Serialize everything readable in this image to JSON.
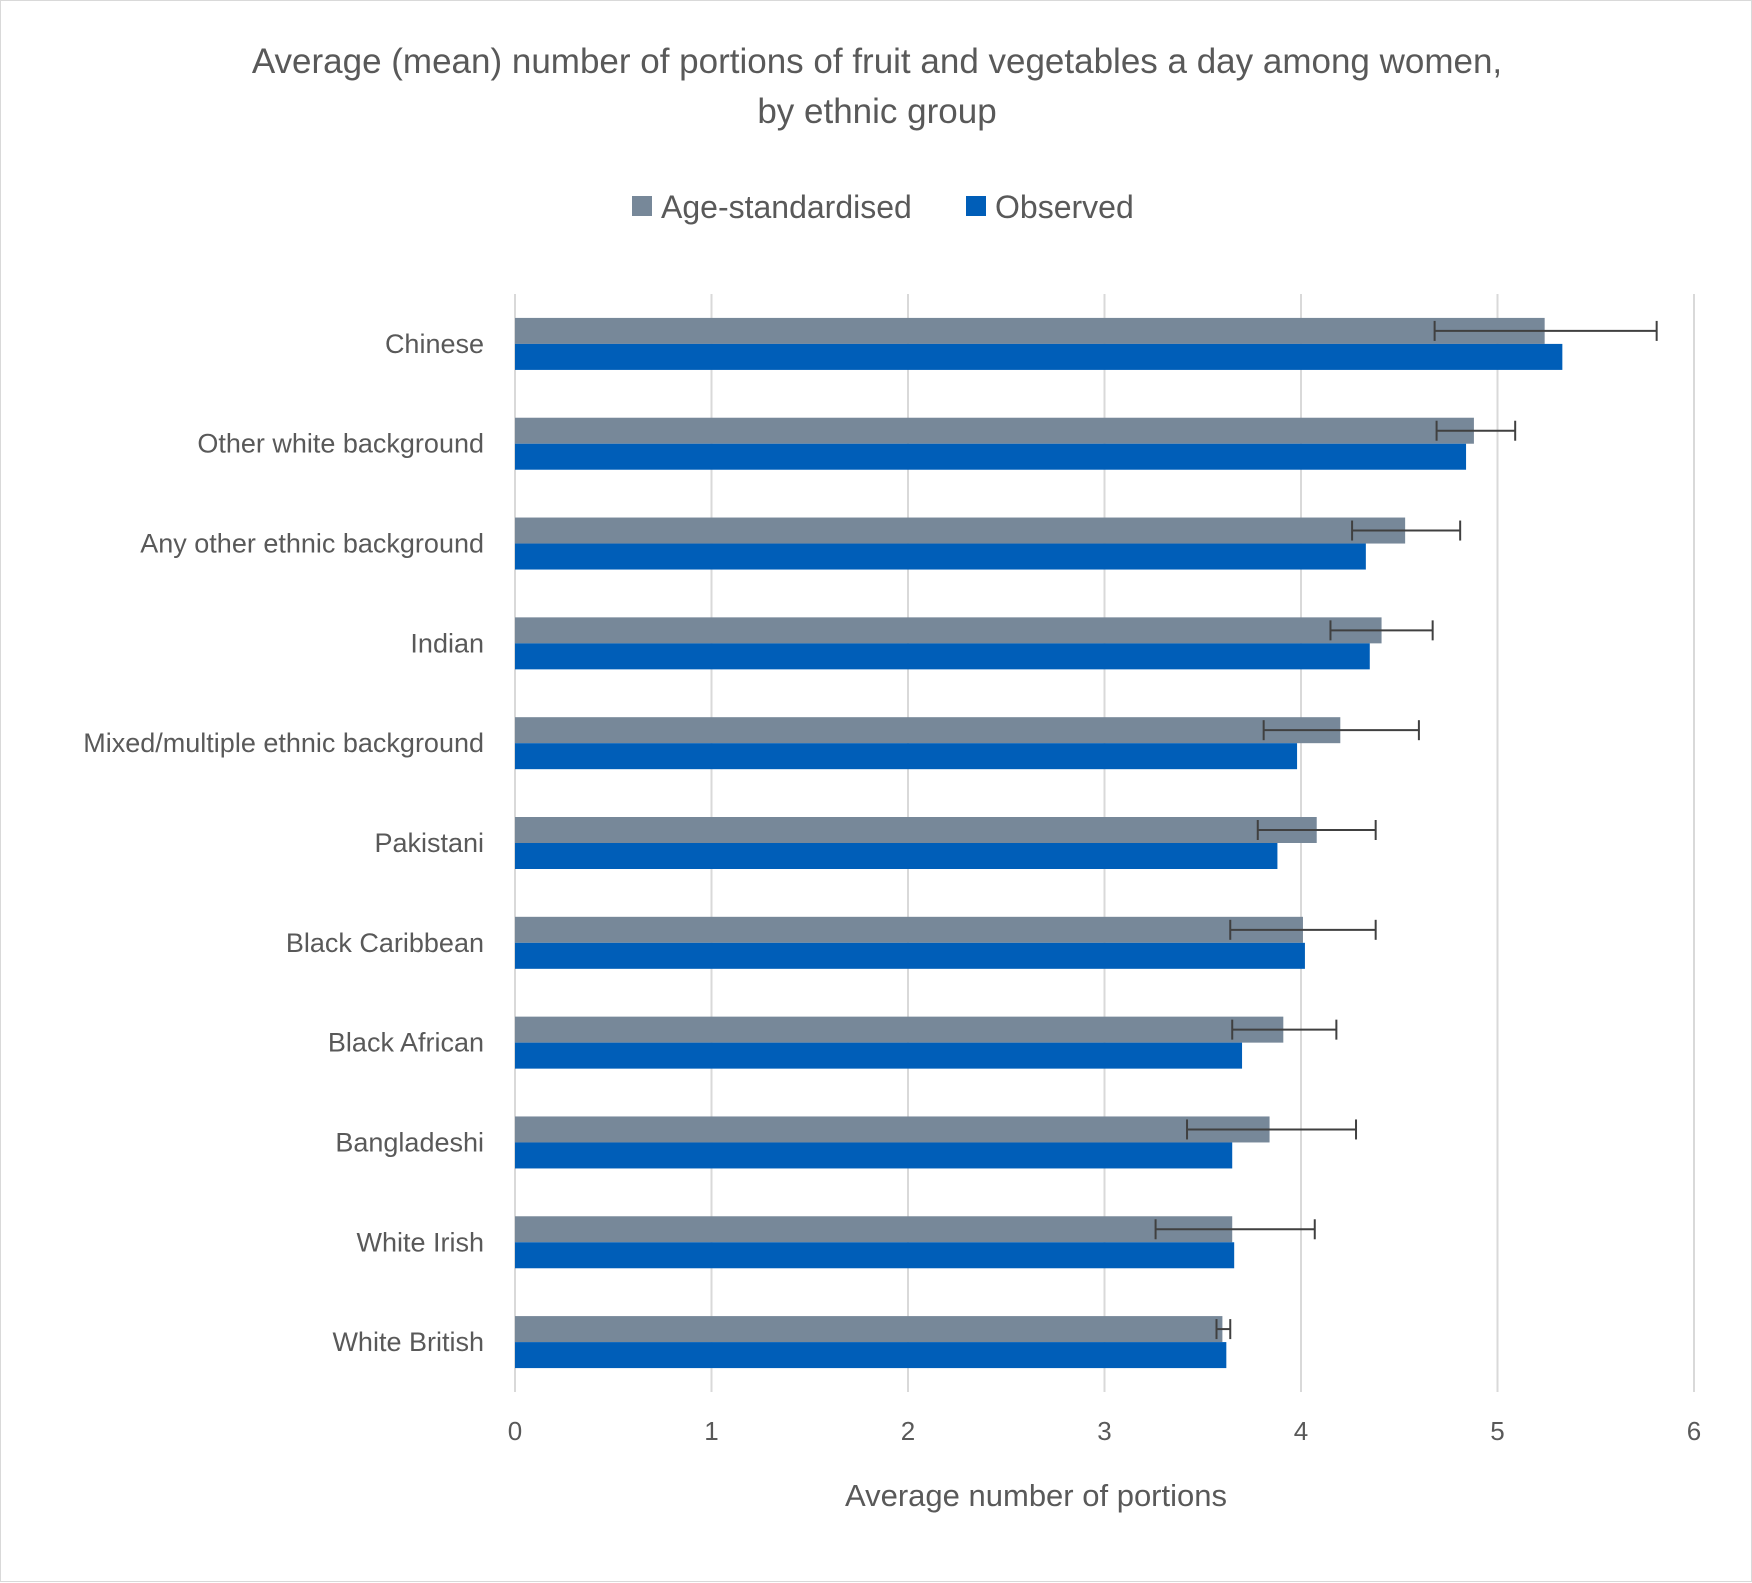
{
  "chart_data": {
    "type": "bar",
    "orientation": "horizontal",
    "title_lines": [
      "Average (mean) number of portions of fruit and vegetables a day among women,",
      "by ethnic group"
    ],
    "xlabel": "Average number of portions",
    "ylabel": "",
    "xlim": [
      0,
      6
    ],
    "x_ticks": [
      "0",
      "1",
      "2",
      "3",
      "4",
      "5",
      "6"
    ],
    "grid": true,
    "legend_position": "top",
    "categories": [
      "Chinese",
      "Other white background",
      "Any other ethnic background",
      "Indian",
      "Mixed/multiple ethnic background",
      "Pakistani",
      "Black Caribbean",
      "Black African",
      "Bangladeshi",
      "White Irish",
      "White British"
    ],
    "series": [
      {
        "name": "Age-standardised",
        "color": "#778899",
        "values": [
          5.24,
          4.88,
          4.53,
          4.41,
          4.2,
          4.08,
          4.01,
          3.91,
          3.84,
          3.65,
          3.6
        ],
        "error_low": [
          4.68,
          4.69,
          4.26,
          4.15,
          3.81,
          3.78,
          3.64,
          3.65,
          3.42,
          3.26,
          3.57
        ],
        "error_high": [
          5.81,
          5.09,
          4.81,
          4.67,
          4.6,
          4.38,
          4.38,
          4.18,
          4.28,
          4.07,
          3.64
        ]
      },
      {
        "name": "Observed",
        "color": "#005EB8",
        "values": [
          5.33,
          4.84,
          4.33,
          4.35,
          3.98,
          3.88,
          4.02,
          3.7,
          3.65,
          3.66,
          3.62
        ]
      }
    ],
    "gridline_color": "#d9d9d9",
    "error_bar_color": "#404040"
  }
}
